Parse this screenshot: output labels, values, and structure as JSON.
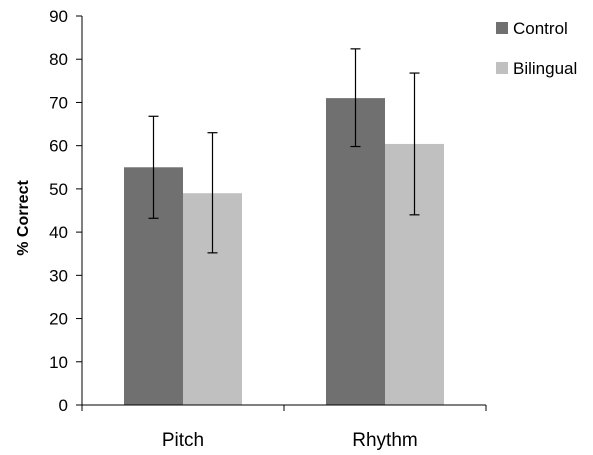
{
  "chart_data": {
    "type": "bar",
    "title": "",
    "xlabel": "",
    "ylabel": "% Correct",
    "ylim": [
      0,
      90
    ],
    "yticks": [
      0,
      10,
      20,
      30,
      40,
      50,
      60,
      70,
      80,
      90
    ],
    "categories": [
      "Pitch",
      "Rhythm"
    ],
    "grid": false,
    "legend_position": "top-right",
    "series": [
      {
        "name": "Control",
        "color": "#707070",
        "values": [
          55,
          71
        ],
        "error_low": [
          43.2,
          59.8
        ],
        "error_high": [
          66.8,
          82.4
        ]
      },
      {
        "name": "Bilingual",
        "color": "#c0c0c0",
        "values": [
          49,
          60.4
        ],
        "error_low": [
          35.2,
          44
        ],
        "error_high": [
          63,
          76.8
        ]
      }
    ]
  }
}
